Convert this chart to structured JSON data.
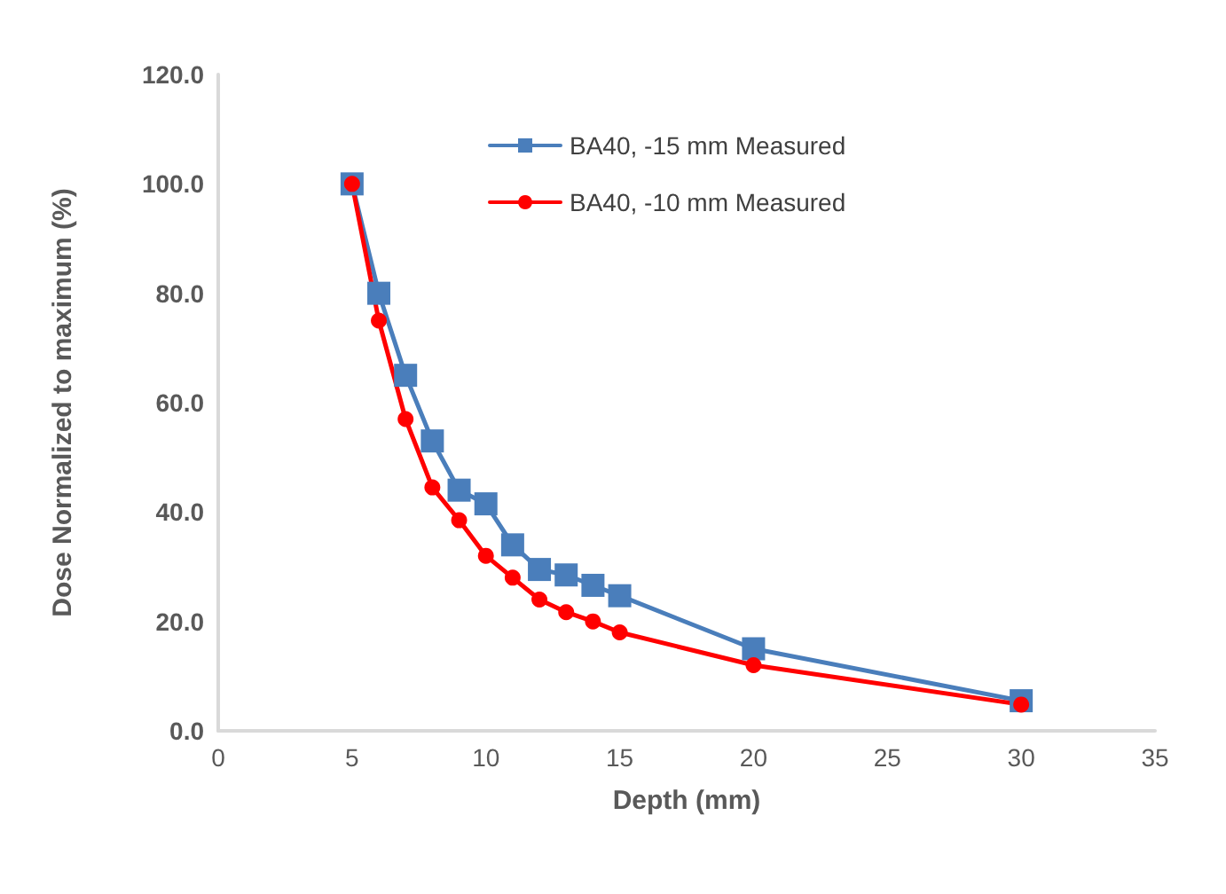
{
  "chart_data": {
    "type": "line",
    "xlabel": "Depth (mm)",
    "ylabel": "Dose Normalized to maximum (%)",
    "x": [
      5,
      6,
      7,
      8,
      9,
      10,
      11,
      12,
      13,
      14,
      15,
      20,
      30
    ],
    "series": [
      {
        "name": "BA40, -15 mm Measured",
        "color": "#4a7ebb",
        "marker": "square",
        "values": [
          100,
          80,
          65,
          53,
          44,
          41.5,
          34,
          29.5,
          28.5,
          26.6,
          24.7,
          15,
          5.5
        ]
      },
      {
        "name": "BA40, -10 mm Measured",
        "color": "#ff0000",
        "marker": "circle",
        "values": [
          100,
          75,
          57,
          44.5,
          38.5,
          32,
          28,
          24,
          21.7,
          20,
          18,
          12,
          4.8
        ]
      }
    ],
    "xlim": [
      0,
      35
    ],
    "xticks": [
      0,
      5,
      10,
      15,
      20,
      25,
      30,
      35
    ],
    "ylim": [
      0,
      120
    ],
    "yticks": [
      {
        "value": 0,
        "label": "0.0"
      },
      {
        "value": 20,
        "label": "20.0"
      },
      {
        "value": 40,
        "label": "40.0"
      },
      {
        "value": 60,
        "label": "60.0"
      },
      {
        "value": 80,
        "label": "80.0"
      },
      {
        "value": 100,
        "label": "100.0"
      },
      {
        "value": 120,
        "label": "120.0"
      }
    ],
    "grid": false,
    "legend": "top",
    "line_style": "solid"
  }
}
